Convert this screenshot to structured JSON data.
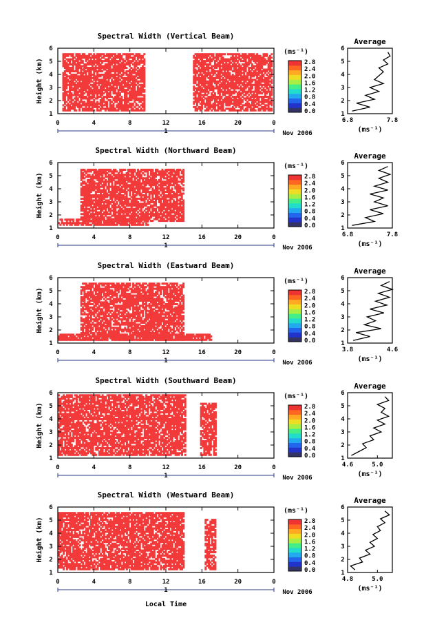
{
  "figure": {
    "bottom_xlabel": "Local Time",
    "date_label": "Nov 2006",
    "x_ticks": [
      "0",
      "4",
      "8",
      "12",
      "16",
      "20",
      "0"
    ],
    "day_label": "1",
    "height_ylabel": "Height (km)",
    "height_ticks": [
      "1",
      "2",
      "3",
      "4",
      "5",
      "6"
    ],
    "colorbar_unit": "(ms⁻¹)",
    "avg_title": "Average",
    "avg_xlabel": "(ms⁻¹)"
  },
  "colors": {
    "field": "#f23a3a",
    "colorbar": [
      "#333366",
      "#2233cc",
      "#2266ee",
      "#22aaee",
      "#22ddcc",
      "#44ee88",
      "#aaee44",
      "#eedd22",
      "#ffaa22",
      "#ff6622",
      "#ee3333"
    ]
  },
  "chart_data": [
    {
      "type": "heatmap",
      "title": "Spectral Width (Vertical Beam)",
      "ylabel": "Height (km)",
      "xlim_hours": [
        0,
        24
      ],
      "ylim_km": [
        1,
        6
      ],
      "colorbar_ticks": [
        "2.8",
        "2.4",
        "2.0",
        "1.6",
        "1.2",
        "0.8",
        "0.4",
        "0.0"
      ],
      "coverage": [
        {
          "t0": 0.5,
          "t1": 9.5,
          "h0": 1.2,
          "h1": 5.5
        },
        {
          "t0": 15.0,
          "t1": 23.8,
          "h0": 1.2,
          "h1": 5.5
        }
      ],
      "average_profile": {
        "title": "Average",
        "xlabel": "(ms⁻¹)",
        "xticks": [
          "6.8",
          "7.8"
        ],
        "xlim": [
          6.8,
          7.8
        ],
        "ylim": [
          1,
          6
        ],
        "heights_km": [
          1.2,
          1.5,
          1.8,
          2.1,
          2.4,
          2.7,
          3.0,
          3.3,
          3.6,
          3.9,
          4.2,
          4.5,
          4.8,
          5.1,
          5.4,
          5.7
        ],
        "values": [
          6.9,
          7.3,
          7.0,
          7.4,
          7.2,
          7.5,
          7.3,
          7.6,
          7.4,
          7.5,
          7.6,
          7.5,
          7.7,
          7.6,
          7.75,
          7.7
        ]
      }
    },
    {
      "type": "heatmap",
      "title": "Spectral Width (Northward Beam)",
      "ylabel": "Height (km)",
      "xlim_hours": [
        0,
        24
      ],
      "ylim_km": [
        1,
        6
      ],
      "colorbar_ticks": [
        "2.8",
        "2.4",
        "2.0",
        "1.6",
        "1.2",
        "0.8",
        "0.4",
        "0.0"
      ],
      "coverage": [
        {
          "t0": 2.5,
          "t1": 14.0,
          "h0": 1.5,
          "h1": 5.4
        },
        {
          "t0": 0.0,
          "t1": 10.0,
          "h0": 1.2,
          "h1": 1.6
        }
      ],
      "average_profile": {
        "title": "Average",
        "xlabel": "(ms⁻¹)",
        "xticks": [
          "6.8",
          "7.8"
        ],
        "xlim": [
          6.8,
          7.8
        ],
        "ylim": [
          1,
          6
        ],
        "heights_km": [
          1.2,
          1.5,
          1.8,
          2.1,
          2.4,
          2.7,
          3.0,
          3.3,
          3.6,
          3.9,
          4.2,
          4.5,
          4.8,
          5.1,
          5.4,
          5.7
        ],
        "values": [
          6.9,
          7.4,
          7.2,
          7.6,
          7.3,
          7.7,
          7.4,
          7.6,
          7.3,
          7.7,
          7.4,
          7.7,
          7.5,
          7.75,
          7.5,
          7.7
        ]
      }
    },
    {
      "type": "heatmap",
      "title": "Spectral Width (Eastward Beam)",
      "ylabel": "Height (km)",
      "xlim_hours": [
        0,
        24
      ],
      "ylim_km": [
        1,
        6
      ],
      "colorbar_ticks": [
        "2.8",
        "2.4",
        "2.0",
        "1.6",
        "1.2",
        "0.8",
        "0.4",
        "0.0"
      ],
      "coverage": [
        {
          "t0": 2.5,
          "t1": 14.0,
          "h0": 1.2,
          "h1": 5.6
        },
        {
          "t0": 0.0,
          "t1": 17.0,
          "h0": 1.2,
          "h1": 1.6
        }
      ],
      "average_profile": {
        "title": "Average",
        "xlabel": "(ms⁻¹)",
        "xticks": [
          "3.8",
          "4.6"
        ],
        "xlim": [
          3.8,
          4.6
        ],
        "ylim": [
          1,
          6
        ],
        "heights_km": [
          1.2,
          1.5,
          1.8,
          2.1,
          2.4,
          2.7,
          3.0,
          3.3,
          3.6,
          3.9,
          4.2,
          4.5,
          4.8,
          5.1,
          5.4,
          5.7
        ],
        "values": [
          3.9,
          4.2,
          3.95,
          4.4,
          4.1,
          4.3,
          4.15,
          4.45,
          4.2,
          4.5,
          4.3,
          4.55,
          4.35,
          4.6,
          4.4,
          4.55
        ]
      }
    },
    {
      "type": "heatmap",
      "title": "Spectral Width (Southward Beam)",
      "ylabel": "Height (km)",
      "xlim_hours": [
        0,
        24
      ],
      "ylim_km": [
        1,
        6
      ],
      "colorbar_ticks": [
        "2.8",
        "2.4",
        "2.0",
        "1.6",
        "1.2",
        "0.8",
        "0.4",
        "0.0"
      ],
      "coverage": [
        {
          "t0": 0.0,
          "t1": 14.2,
          "h0": 1.2,
          "h1": 5.8
        },
        {
          "t0": 15.8,
          "t1": 17.5,
          "h0": 1.2,
          "h1": 5.2
        }
      ],
      "average_profile": {
        "title": "Average",
        "xlabel": "(ms⁻¹)",
        "xticks": [
          "4.6",
          "5.0"
        ],
        "xlim": [
          4.6,
          5.2
        ],
        "ylim": [
          1,
          6
        ],
        "heights_km": [
          1.2,
          1.5,
          1.8,
          2.1,
          2.4,
          2.7,
          3.0,
          3.3,
          3.6,
          3.9,
          4.2,
          4.5,
          4.8,
          5.1,
          5.4,
          5.7
        ],
        "values": [
          4.65,
          4.75,
          4.85,
          4.8,
          4.95,
          4.9,
          5.05,
          4.95,
          5.1,
          5.0,
          5.15,
          5.05,
          5.1,
          5.0,
          5.15,
          5.1
        ]
      }
    },
    {
      "type": "heatmap",
      "title": "Spectral Width (Westward Beam)",
      "ylabel": "Height (km)",
      "xlim_hours": [
        0,
        24
      ],
      "ylim_km": [
        1,
        6
      ],
      "colorbar_ticks": [
        "2.8",
        "2.4",
        "2.0",
        "1.6",
        "1.2",
        "0.8",
        "0.4",
        "0.0"
      ],
      "coverage": [
        {
          "t0": 0.0,
          "t1": 14.0,
          "h0": 1.2,
          "h1": 5.6
        },
        {
          "t0": 16.3,
          "t1": 17.5,
          "h0": 1.2,
          "h1": 5.0
        }
      ],
      "average_profile": {
        "title": "Average",
        "xlabel": "(ms⁻¹)",
        "xticks": [
          "4.8",
          "5.0"
        ],
        "xlim": [
          4.8,
          5.1
        ],
        "ylim": [
          1,
          6
        ],
        "heights_km": [
          1.2,
          1.5,
          1.8,
          2.1,
          2.4,
          2.7,
          3.0,
          3.3,
          3.6,
          3.9,
          4.2,
          4.5,
          4.8,
          5.1,
          5.4,
          5.7
        ],
        "values": [
          4.85,
          4.82,
          4.9,
          4.88,
          4.95,
          4.92,
          4.98,
          4.95,
          5.0,
          4.97,
          5.02,
          5.0,
          5.05,
          5.02,
          5.08,
          5.05
        ]
      }
    }
  ]
}
